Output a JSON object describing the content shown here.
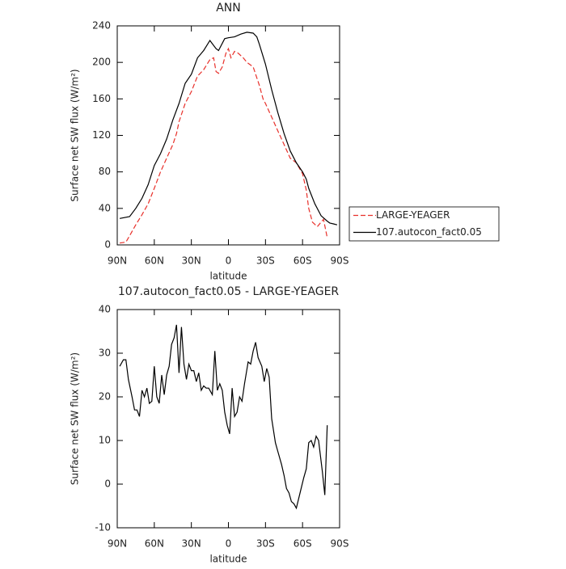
{
  "chart_data": [
    {
      "type": "line",
      "title": "ANN",
      "xlabel": "latitude",
      "ylabel": "Surface net SW flux (W/m²)",
      "xlim": [
        90,
        -90
      ],
      "ylim": [
        0,
        240
      ],
      "xticks": [
        {
          "value": 90,
          "label": "90N"
        },
        {
          "value": 60,
          "label": "60N"
        },
        {
          "value": 30,
          "label": "30N"
        },
        0,
        {
          "value": -30,
          "label": "30S"
        },
        {
          "value": -60,
          "label": "60S"
        },
        {
          "value": -90,
          "label": "90S"
        }
      ],
      "yticks": [
        0,
        40,
        80,
        120,
        160,
        200,
        240
      ],
      "legend": "right",
      "series": [
        {
          "name": "LARGE-YEAGER",
          "color": "#e8302a",
          "dashed": true,
          "x": [
            88,
            83,
            80,
            75,
            70,
            65,
            60,
            55,
            50,
            45,
            42,
            40,
            35,
            30,
            25,
            20,
            15,
            12,
            10,
            8,
            5,
            2,
            0,
            -2,
            -5,
            -8,
            -12,
            -15,
            -20,
            -25,
            -28,
            -30,
            -35,
            -40,
            -45,
            -50,
            -55,
            -60,
            -63,
            -65,
            -68,
            -72,
            -75,
            -77,
            -80
          ],
          "values": [
            2,
            3,
            10,
            22,
            33,
            45,
            62,
            80,
            95,
            110,
            122,
            135,
            155,
            168,
            185,
            192,
            203,
            205,
            190,
            188,
            195,
            210,
            215,
            205,
            212,
            210,
            205,
            200,
            195,
            175,
            160,
            155,
            140,
            125,
            110,
            95,
            90,
            78,
            60,
            40,
            25,
            20,
            25,
            28,
            8
          ]
        },
        {
          "name": "107.autocon_fact0.05",
          "color": "#000000",
          "dashed": false,
          "x": [
            88,
            80,
            75,
            70,
            65,
            60,
            55,
            50,
            45,
            40,
            35,
            30,
            25,
            20,
            15,
            10,
            8,
            3,
            0,
            -5,
            -10,
            -15,
            -20,
            -23,
            -25,
            -30,
            -35,
            -40,
            -45,
            -50,
            -55,
            -60,
            -63,
            -65,
            -70,
            -75,
            -80,
            -82,
            -85,
            -88
          ],
          "values": [
            29,
            31,
            40,
            51,
            66,
            87,
            100,
            116,
            137,
            155,
            177,
            187,
            205,
            213,
            224,
            215,
            213,
            226,
            227,
            228,
            231,
            233,
            232,
            228,
            220,
            198,
            170,
            145,
            122,
            103,
            90,
            80,
            72,
            62,
            45,
            32,
            26,
            24,
            23,
            22
          ]
        }
      ]
    },
    {
      "type": "line",
      "title": "107.autocon_fact0.05 - LARGE-YEAGER",
      "xlabel": "latitude",
      "ylabel": "Surface net SW flux (W/m²)",
      "xlim": [
        90,
        -90
      ],
      "ylim": [
        -10,
        40
      ],
      "xticks": [
        {
          "value": 90,
          "label": "90N"
        },
        {
          "value": 60,
          "label": "60N"
        },
        {
          "value": 30,
          "label": "30N"
        },
        0,
        {
          "value": -30,
          "label": "30S"
        },
        {
          "value": -60,
          "label": "60S"
        },
        {
          "value": -90,
          "label": "90S"
        }
      ],
      "yticks": [
        -10,
        0,
        10,
        20,
        30,
        40
      ],
      "series": [
        {
          "color": "#000000",
          "dashed": false,
          "x": [
            88,
            85,
            83,
            81,
            78,
            76,
            74,
            72,
            70,
            68,
            66,
            64,
            62,
            60,
            58,
            56,
            54,
            52,
            50,
            48,
            46,
            44,
            42,
            40,
            38,
            36,
            34,
            32,
            30,
            28,
            26,
            24,
            22,
            20,
            18,
            16,
            13,
            11,
            9,
            7,
            5,
            3,
            1,
            -1,
            -3,
            -5,
            -7,
            -9,
            -11,
            -13,
            -16,
            -18,
            -20,
            -22,
            -24,
            -27,
            -29,
            -31,
            -33,
            -35,
            -38,
            -40,
            -43,
            -45,
            -47,
            -49,
            -51,
            -53,
            -55,
            -58,
            -61,
            -63,
            -65,
            -67,
            -69,
            -71,
            -73,
            -76,
            -78,
            -80
          ],
          "values": [
            27,
            28.5,
            28.5,
            24,
            20,
            17,
            17,
            15.5,
            21.5,
            20,
            22,
            18.5,
            19,
            27,
            20,
            18.5,
            25,
            20.5,
            25,
            27,
            32,
            33.5,
            36.5,
            25.5,
            36,
            27.5,
            24,
            27.5,
            26,
            26,
            23.5,
            25.5,
            21.5,
            22.5,
            22,
            22,
            20.5,
            30.5,
            21.5,
            23,
            21.5,
            16.5,
            13.5,
            11.5,
            22,
            15.5,
            16.5,
            20,
            19,
            23,
            28,
            27.5,
            30.5,
            32.5,
            29,
            27,
            23.5,
            26.5,
            24.5,
            15,
            9.5,
            7.5,
            4.5,
            2,
            -1,
            -2,
            -4,
            -4.5,
            -5.5,
            -2,
            1.5,
            3.5,
            9.5,
            10,
            8.5,
            11,
            10,
            3,
            -2.5,
            13.5
          ]
        }
      ]
    }
  ]
}
